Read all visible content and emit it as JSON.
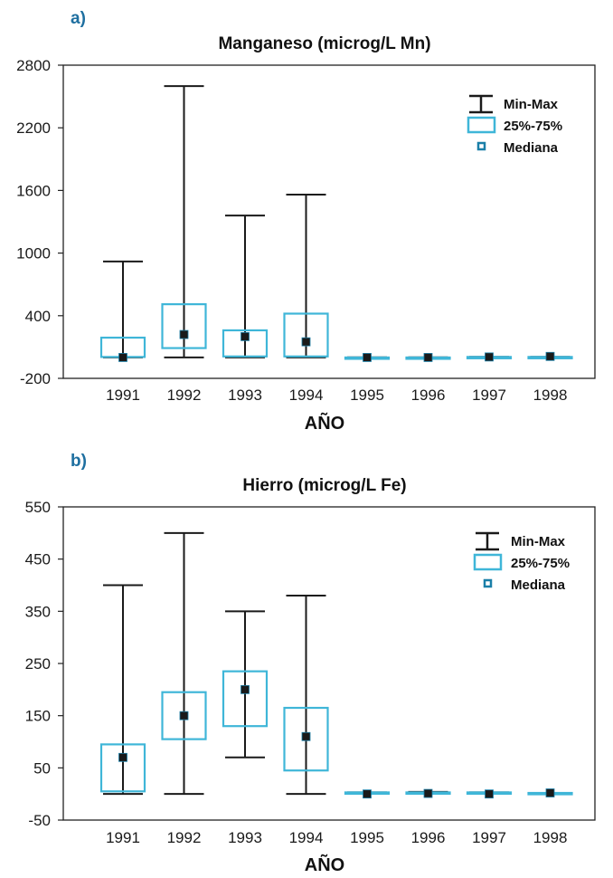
{
  "colors": {
    "whisker": "#1a1a1a",
    "box": "#3fb6d8",
    "median_fill": "#1a1a1a",
    "legend_median": "#1a7fa8",
    "panel_letter": "#1e6fa0"
  },
  "chart_data": [
    {
      "type": "box",
      "panel_label": "a)",
      "title": "Manganeso (microg/L Mn)",
      "xlabel": "AÑO",
      "ylabel": "",
      "ylim": [
        -200,
        2800
      ],
      "yticks": [
        -200,
        400,
        1000,
        1600,
        2200,
        2800
      ],
      "ytick_labels": [
        "-200",
        "400",
        "1000",
        "1600",
        "2200",
        "2800"
      ],
      "categories": [
        "1991",
        "1992",
        "1993",
        "1994",
        "1995",
        "1996",
        "1997",
        "1998"
      ],
      "min": [
        0,
        0,
        0,
        0,
        0,
        0,
        5,
        5
      ],
      "max": [
        920,
        2600,
        1360,
        1560,
        0,
        0,
        5,
        5
      ],
      "q1": [
        5,
        90,
        10,
        10,
        0,
        0,
        5,
        5
      ],
      "q3": [
        190,
        510,
        260,
        420,
        0,
        0,
        5,
        5
      ],
      "median": [
        0,
        220,
        200,
        150,
        0,
        0,
        5,
        10
      ],
      "legend": {
        "minmax": "Min-Max",
        "iqr": "25%-75%",
        "median": "Mediana"
      },
      "grid": false,
      "legend_position": "top-right"
    },
    {
      "type": "box",
      "panel_label": "b)",
      "title": "Hierro (microg/L Fe)",
      "xlabel": "AÑO",
      "ylabel": "",
      "ylim": [
        -50,
        550
      ],
      "yticks": [
        -50,
        50,
        150,
        250,
        350,
        450,
        550
      ],
      "ytick_labels": [
        "-50",
        "50",
        "150",
        "250",
        "350",
        "450",
        "550"
      ],
      "categories": [
        "1991",
        "1992",
        "1993",
        "1994",
        "1995",
        "1996",
        "1997",
        "1998"
      ],
      "min": [
        0,
        0,
        70,
        0,
        1,
        2,
        1,
        0
      ],
      "max": [
        400,
        500,
        350,
        380,
        3,
        4,
        3,
        2
      ],
      "q1": [
        5,
        105,
        130,
        45,
        1,
        2,
        1,
        1
      ],
      "q3": [
        95,
        195,
        235,
        165,
        3,
        3,
        3,
        2
      ],
      "median": [
        70,
        150,
        200,
        110,
        0,
        1,
        0,
        2
      ],
      "legend": {
        "minmax": "Min-Max",
        "iqr": "25%-75%",
        "median": "Mediana"
      },
      "grid": false,
      "legend_position": "top-right"
    }
  ]
}
